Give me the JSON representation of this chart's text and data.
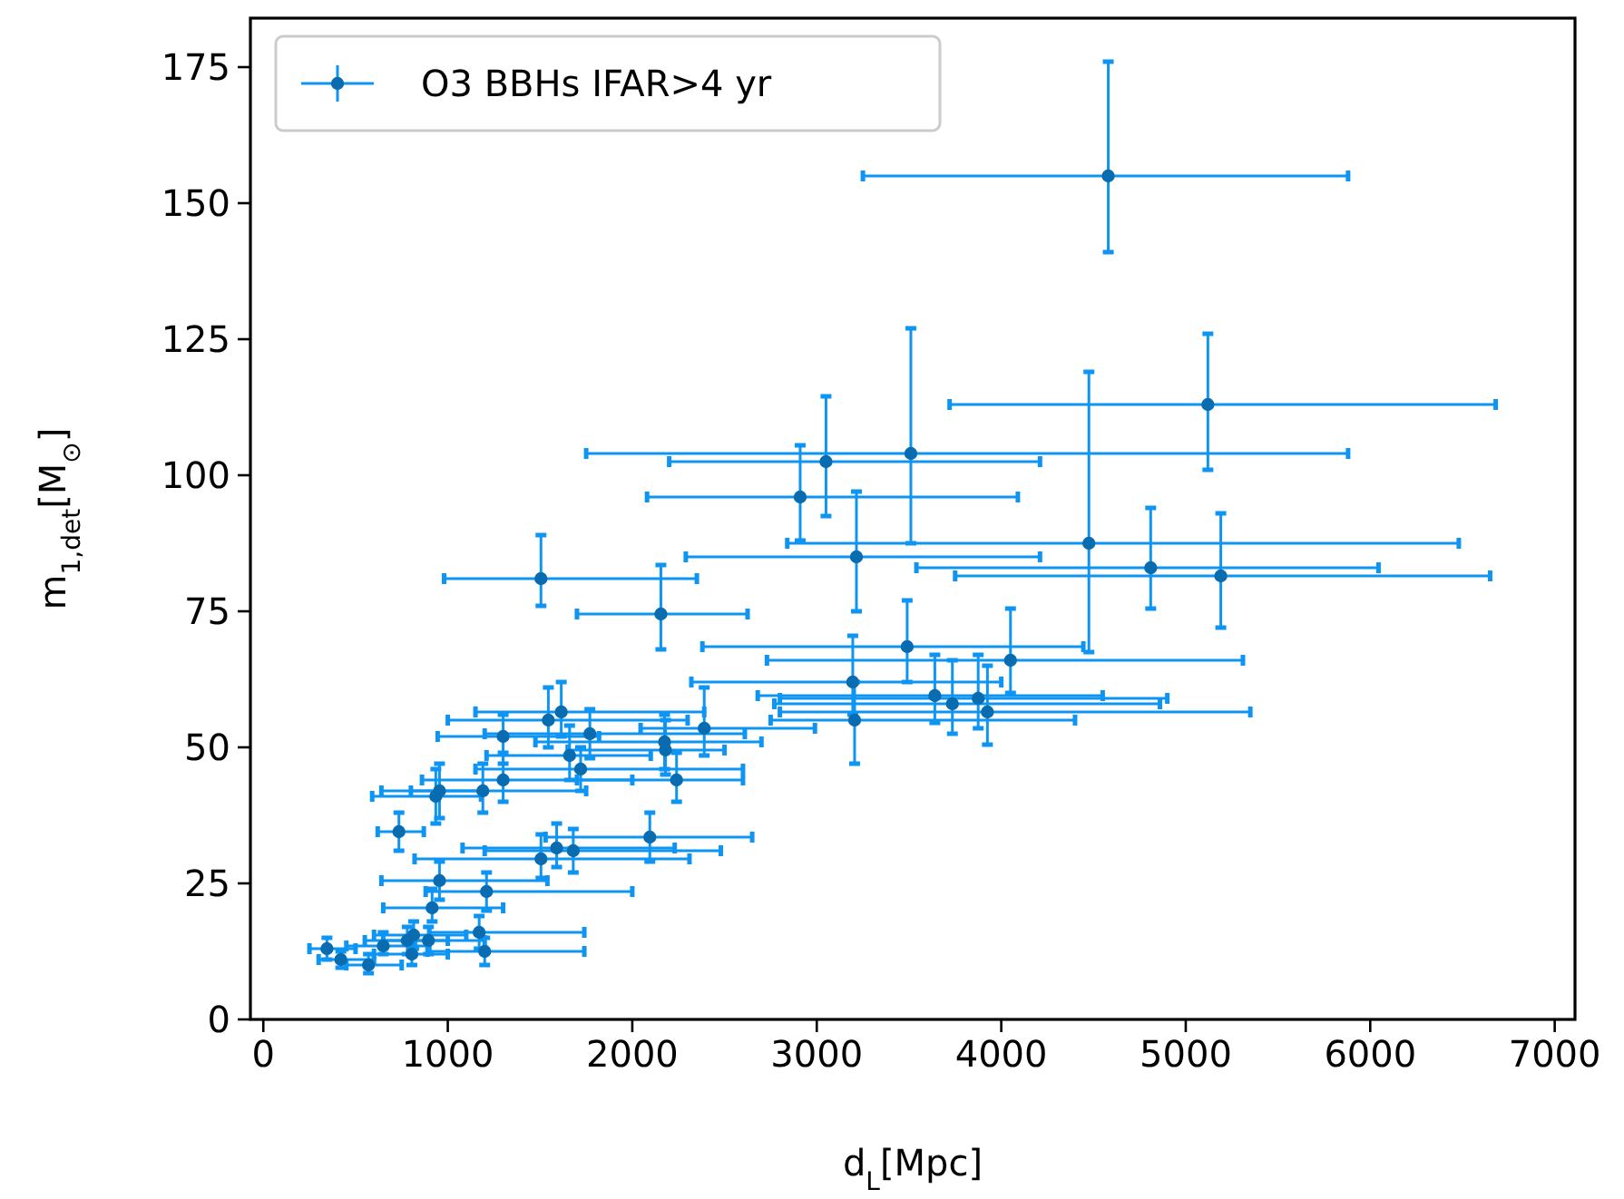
{
  "chart_data": {
    "type": "scatter",
    "xlabel": "d$_{L}$[Mpc]",
    "ylabel": "m$_{1,det}$[M$_{⊙}$]",
    "xlim": [
      -70,
      7110
    ],
    "xticks": [
      0,
      1000,
      2000,
      3000,
      4000,
      5000,
      6000,
      7000
    ],
    "ylim": [
      0,
      184
    ],
    "yticks": [
      0,
      25,
      50,
      75,
      100,
      125,
      150,
      175
    ],
    "grid": false,
    "legend": "top left",
    "marker": "circle",
    "series": [
      {
        "name": "O3 BBHs IFAR>4 yr",
        "color": "#0a6cb0",
        "x": [
          4580,
          5120,
          3510,
          3050,
          2910,
          1505,
          2155,
          3215,
          4475,
          4810,
          5190,
          3490,
          4050,
          3195,
          3640,
          3735,
          3875,
          3925,
          3205,
          2390,
          2175,
          2180,
          2240,
          1615,
          1545,
          1770,
          1300,
          1660,
          1720,
          1300,
          1190,
          935,
          955,
          735,
          2095,
          1590,
          1680,
          1505,
          955,
          1210,
          915,
          1170,
          1200,
          815,
          895,
          805,
          650,
          345,
          420,
          570,
          780
        ],
        "values": [
          155,
          113,
          104,
          102.5,
          96,
          81,
          74.5,
          85,
          87.5,
          83,
          81.5,
          68.5,
          66,
          62,
          59.5,
          58,
          59,
          56.5,
          55,
          53.5,
          51,
          49.5,
          44,
          56.5,
          55,
          52.5,
          52,
          48.5,
          46,
          44,
          42,
          41,
          42,
          34.5,
          33.5,
          31.5,
          31,
          29.5,
          25.5,
          23.5,
          20.5,
          16,
          12.5,
          15.5,
          14.5,
          12,
          13.5,
          13,
          11,
          10,
          14.5
        ],
        "xerrors": [
          [
            3250,
            5880
          ],
          [
            3720,
            6680
          ],
          [
            1750,
            5880
          ],
          [
            2200,
            4210
          ],
          [
            2080,
            4090
          ],
          [
            980,
            2350
          ],
          [
            1700,
            2625
          ],
          [
            2290,
            4210
          ],
          [
            2840,
            6480
          ],
          [
            3540,
            6045
          ],
          [
            3750,
            6650
          ],
          [
            2380,
            4445
          ],
          [
            2730,
            5310
          ],
          [
            2320,
            4000
          ],
          [
            2680,
            4550
          ],
          [
            2770,
            4860
          ],
          [
            2800,
            4900
          ],
          [
            2800,
            5350
          ],
          [
            2750,
            4400
          ],
          [
            2045,
            2990
          ],
          [
            1475,
            2700
          ],
          [
            1650,
            2500
          ],
          [
            1700,
            2600
          ],
          [
            1150,
            2390
          ],
          [
            1000,
            2300
          ],
          [
            1200,
            2610
          ],
          [
            945,
            1820
          ],
          [
            1210,
            2100
          ],
          [
            1150,
            2600
          ],
          [
            860,
            2000
          ],
          [
            800,
            1750
          ],
          [
            590,
            1180
          ],
          [
            640,
            1200
          ],
          [
            620,
            870
          ],
          [
            1530,
            2650
          ],
          [
            1080,
            2230
          ],
          [
            1200,
            2480
          ],
          [
            820,
            2310
          ],
          [
            640,
            1540
          ],
          [
            880,
            2000
          ],
          [
            650,
            1300
          ],
          [
            900,
            1740
          ],
          [
            890,
            1740
          ],
          [
            600,
            1100
          ],
          [
            650,
            1200
          ],
          [
            600,
            1000
          ],
          [
            450,
            900
          ],
          [
            250,
            500
          ],
          [
            300,
            600
          ],
          [
            450,
            750
          ],
          [
            550,
            1000
          ]
        ],
        "errors": [
          [
            141,
            176
          ],
          [
            101,
            126
          ],
          [
            87.5,
            127
          ],
          [
            92.5,
            114.5
          ],
          [
            88,
            105.5
          ],
          [
            76,
            89
          ],
          [
            68,
            83.5
          ],
          [
            75,
            97
          ],
          [
            67.5,
            119
          ],
          [
            75.5,
            94
          ],
          [
            72,
            93
          ],
          [
            62,
            77
          ],
          [
            60,
            75.5
          ],
          [
            56,
            70.5
          ],
          [
            54.5,
            67
          ],
          [
            52.5,
            66
          ],
          [
            53.5,
            67
          ],
          [
            50.5,
            65
          ],
          [
            47,
            62
          ],
          [
            48.5,
            61
          ],
          [
            46,
            56
          ],
          [
            45,
            55
          ],
          [
            40,
            49
          ],
          [
            52,
            62
          ],
          [
            50,
            61
          ],
          [
            48,
            57
          ],
          [
            47,
            56
          ],
          [
            44,
            54
          ],
          [
            42,
            50
          ],
          [
            40,
            49
          ],
          [
            38,
            47
          ],
          [
            36,
            46
          ],
          [
            37,
            47
          ],
          [
            31,
            38
          ],
          [
            29,
            38
          ],
          [
            28,
            36
          ],
          [
            27,
            35
          ],
          [
            26,
            34
          ],
          [
            22,
            29
          ],
          [
            20,
            27
          ],
          [
            18,
            24
          ],
          [
            13,
            19
          ],
          [
            10,
            15
          ],
          [
            13,
            18
          ],
          [
            12,
            17
          ],
          [
            10,
            14
          ],
          [
            12,
            16
          ],
          [
            11,
            15
          ],
          [
            9.5,
            12.5
          ],
          [
            8.5,
            12
          ],
          [
            12,
            17
          ]
        ]
      }
    ]
  }
}
